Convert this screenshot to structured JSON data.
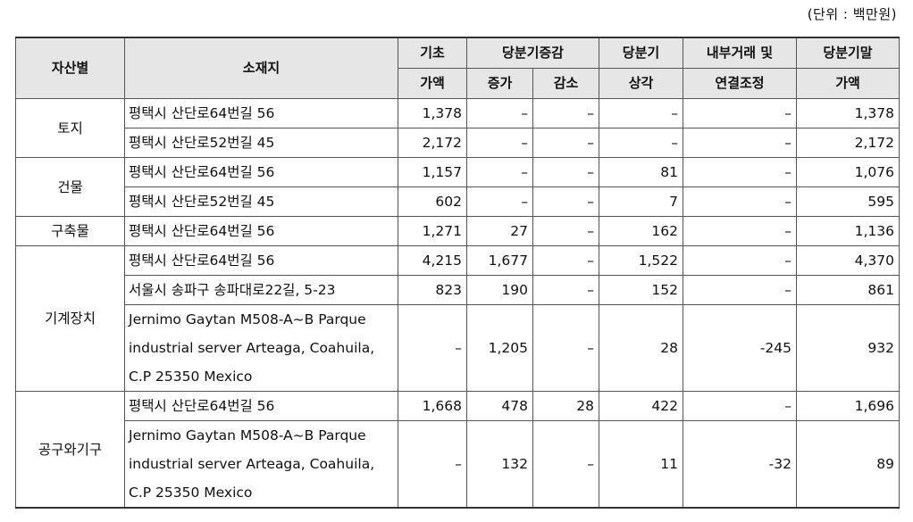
{
  "unit_note": "(단위 : 백만원)",
  "headers": {
    "category": "자산별",
    "location": "소재지",
    "opening_line1": "기초",
    "opening_line2": "가액",
    "change_group": "당분기증감",
    "increase": "증가",
    "decrease": "감소",
    "depr_line1": "당분기",
    "depr_line2": "상각",
    "adj_line1": "내부거래 및",
    "adj_line2": "연결조정",
    "closing_line1": "당분기말",
    "closing_line2": "가액"
  },
  "groups": [
    {
      "name": "토지",
      "rows": [
        {
          "location": "평택시 산단로64번길 56",
          "opening": "1,378",
          "increase": "–",
          "decrease": "–",
          "depreciation": "–",
          "adjustment": "–",
          "closing": "1,378"
        },
        {
          "location": "평택시 산단로52번길 45",
          "opening": "2,172",
          "increase": "–",
          "decrease": "–",
          "depreciation": "–",
          "adjustment": "–",
          "closing": "2,172"
        }
      ]
    },
    {
      "name": "건물",
      "rows": [
        {
          "location": "평택시 산단로64번길 56",
          "opening": "1,157",
          "increase": "–",
          "decrease": "–",
          "depreciation": "81",
          "adjustment": "–",
          "closing": "1,076"
        },
        {
          "location": "평택시 산단로52번길 45",
          "opening": "602",
          "increase": "–",
          "decrease": "–",
          "depreciation": "7",
          "adjustment": "–",
          "closing": "595"
        }
      ]
    },
    {
      "name": "구축물",
      "rows": [
        {
          "location": "평택시 산단로64번길 56",
          "opening": "1,271",
          "increase": "27",
          "decrease": "–",
          "depreciation": "162",
          "adjustment": "–",
          "closing": "1,136"
        }
      ]
    },
    {
      "name": "기계장치",
      "rows": [
        {
          "location": "평택시 산단로64번길 56",
          "opening": "4,215",
          "increase": "1,677",
          "decrease": "–",
          "depreciation": "1,522",
          "adjustment": "–",
          "closing": "4,370"
        },
        {
          "location": "서울시 송파구 송파대로22길, 5-23",
          "opening": "823",
          "increase": "190",
          "decrease": "–",
          "depreciation": "152",
          "adjustment": "–",
          "closing": "861"
        },
        {
          "location": "Jernimo Gaytan M508-A~B Parque industrial server Arteaga, Coahuila, C.P 25350 Mexico",
          "opening": "–",
          "increase": "1,205",
          "decrease": "–",
          "depreciation": "28",
          "adjustment": "-245",
          "closing": "932"
        }
      ]
    },
    {
      "name": "공구와기구",
      "rows": [
        {
          "location": "평택시 산단로64번길 56",
          "opening": "1,668",
          "increase": "478",
          "decrease": "28",
          "depreciation": "422",
          "adjustment": "–",
          "closing": "1,696"
        },
        {
          "location": "Jernimo Gaytan M508-A~B Parque industrial server Arteaga, Coahuila, C.P 25350 Mexico",
          "opening": "–",
          "increase": "132",
          "decrease": "–",
          "depreciation": "11",
          "adjustment": "-32",
          "closing": "89"
        }
      ]
    }
  ]
}
